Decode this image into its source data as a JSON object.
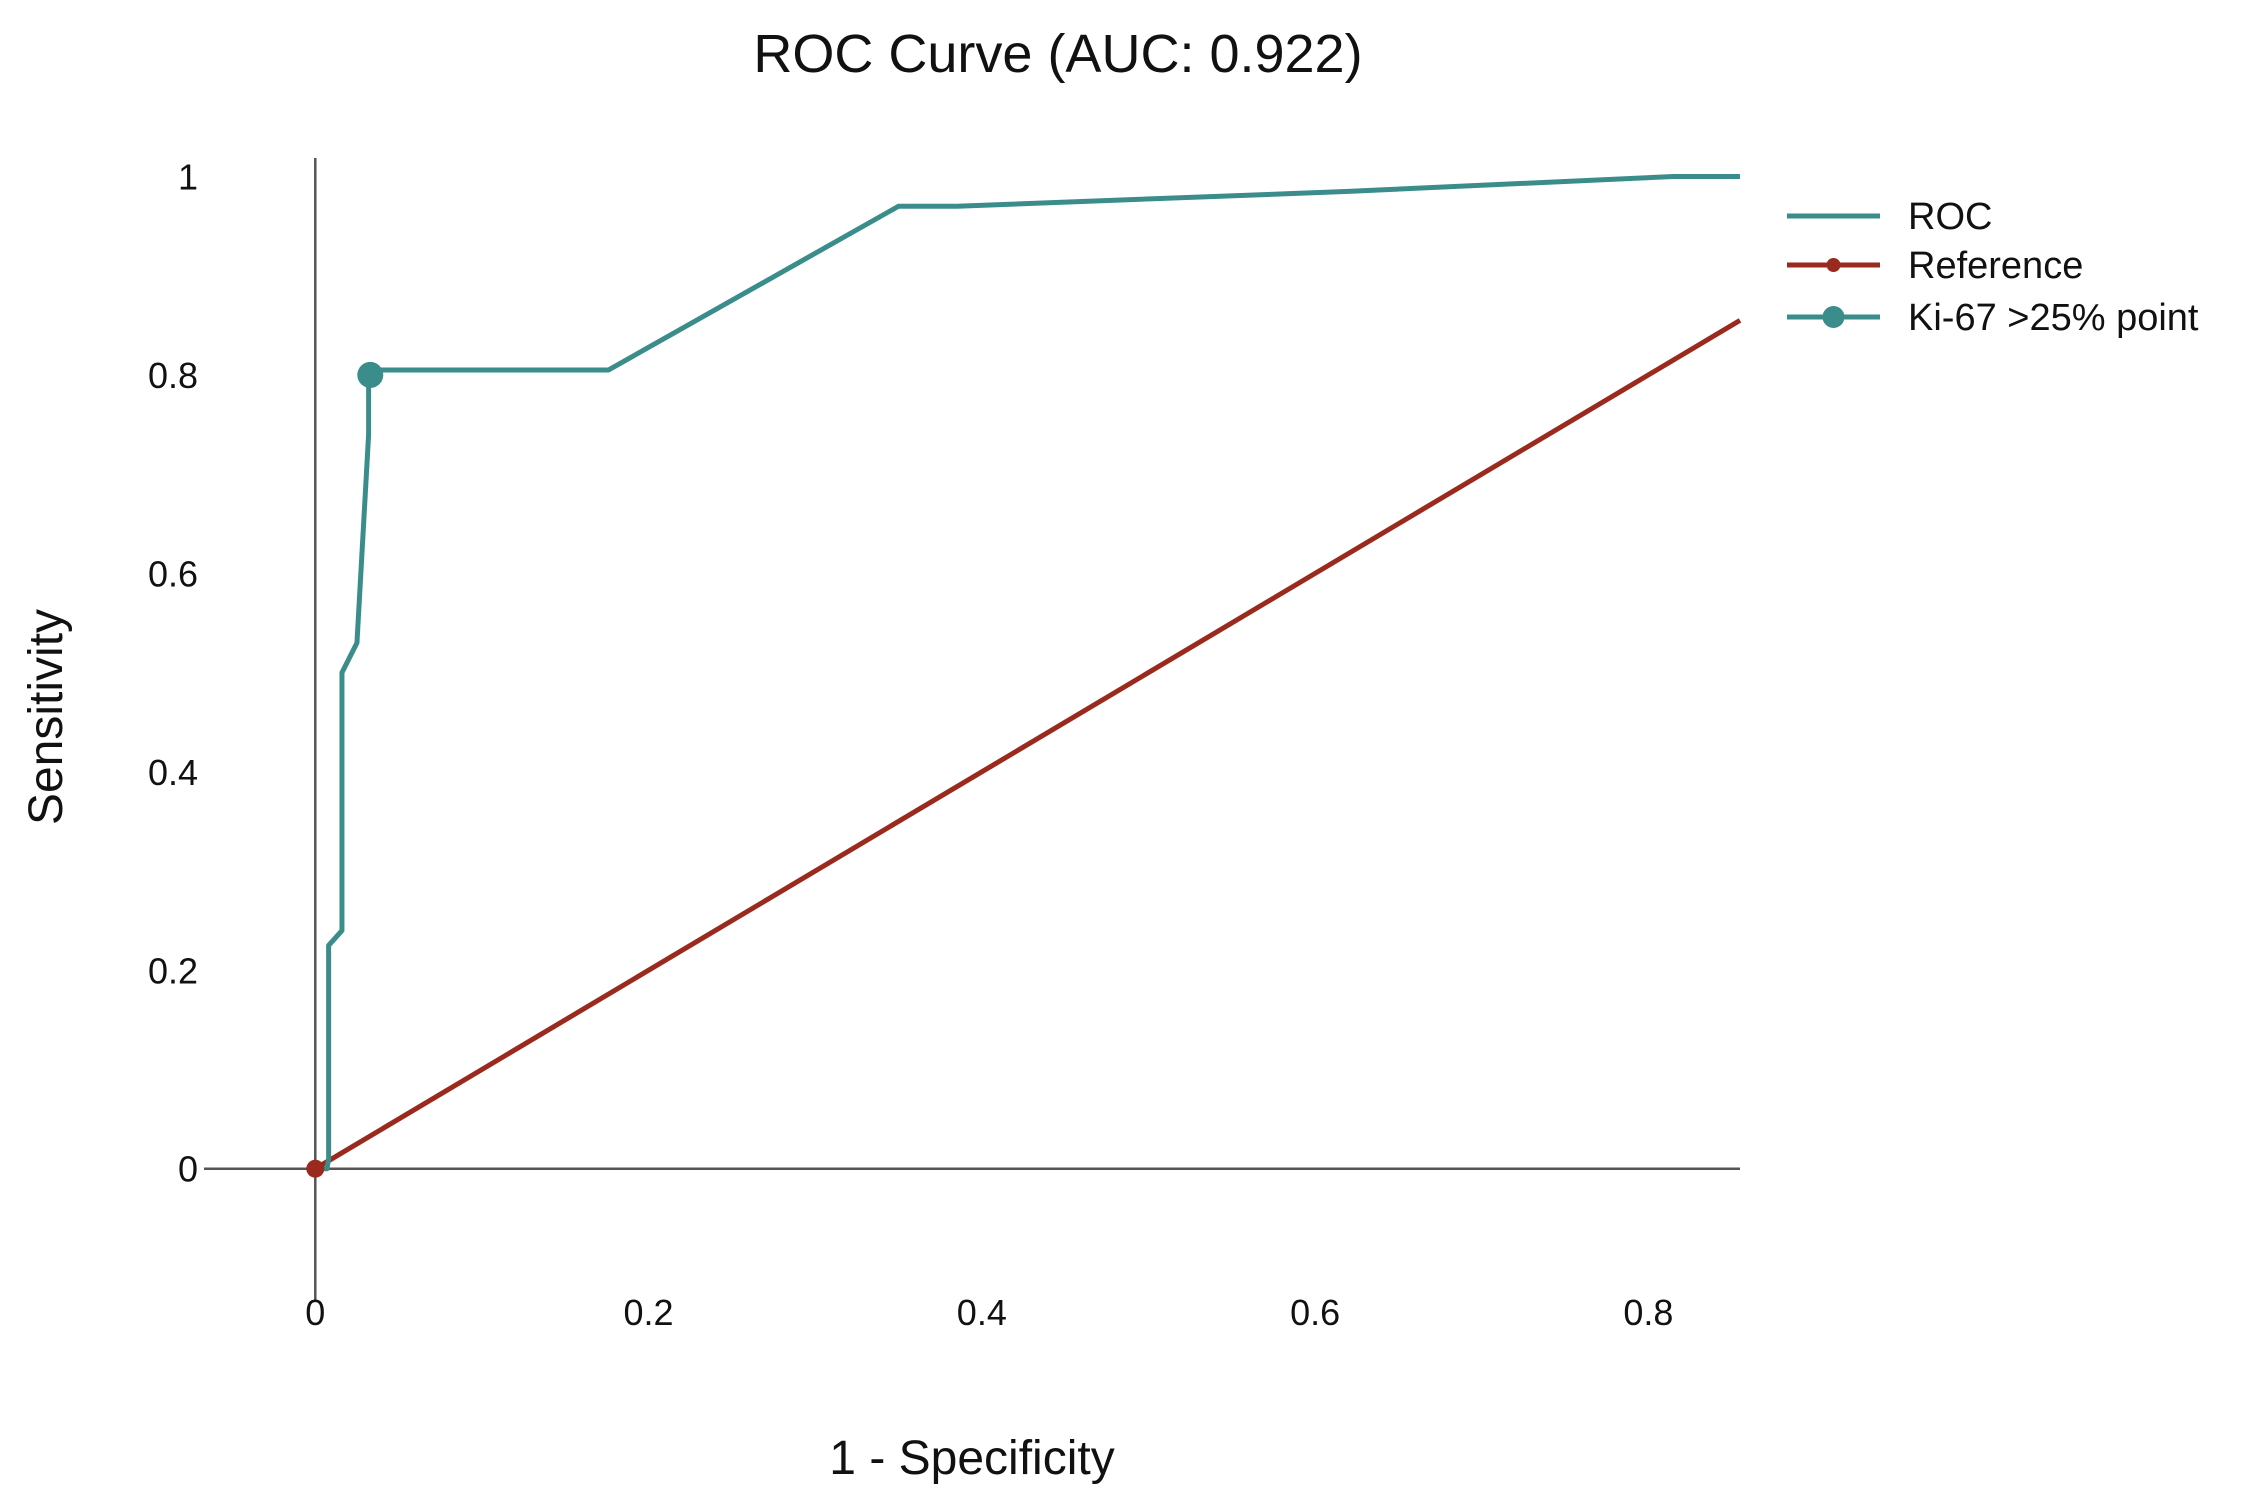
{
  "chart_data": {
    "type": "line",
    "title": "ROC Curve (AUC: 0.922)",
    "xlabel": "1 - Specificity",
    "ylabel": "Sensitivity",
    "xlim": [
      -0.11,
      0.855
    ],
    "ylim": [
      -0.09,
      1.065
    ],
    "xticks": [
      0,
      0.2,
      0.4,
      0.6,
      0.8
    ],
    "xtick_labels": [
      "0",
      "0.2",
      "0.4",
      "0.6",
      "0.8"
    ],
    "yticks": [
      0,
      0.2,
      0.4,
      0.6,
      0.8,
      1
    ],
    "ytick_labels": [
      "0",
      "0.2",
      "0.4",
      "0.6",
      "0.8",
      "1"
    ],
    "grid": false,
    "legend_position": "top-right",
    "colors": {
      "roc": "#3a8d8a",
      "reference": "#9b2a1e",
      "axis": "#555555"
    },
    "series": [
      {
        "name": "ROC",
        "x": [
          0,
          0.007,
          0.008,
          0.008,
          0.016,
          0.016,
          0.025,
          0.032,
          0.032,
          0.034,
          0.176,
          0.35,
          0.385,
          0.62,
          0.815,
          0.855
        ],
        "y": [
          0,
          0,
          0.01,
          0.225,
          0.24,
          0.5,
          0.53,
          0.74,
          0.8,
          0.805,
          0.805,
          0.97,
          0.97,
          0.985,
          1.0,
          1.0
        ]
      },
      {
        "name": "Reference",
        "x": [
          0,
          0.855
        ],
        "y": [
          0,
          0.855
        ]
      },
      {
        "name": "Ki-67 >25% point",
        "x": [
          0.033
        ],
        "y": [
          0.8
        ]
      }
    ]
  }
}
